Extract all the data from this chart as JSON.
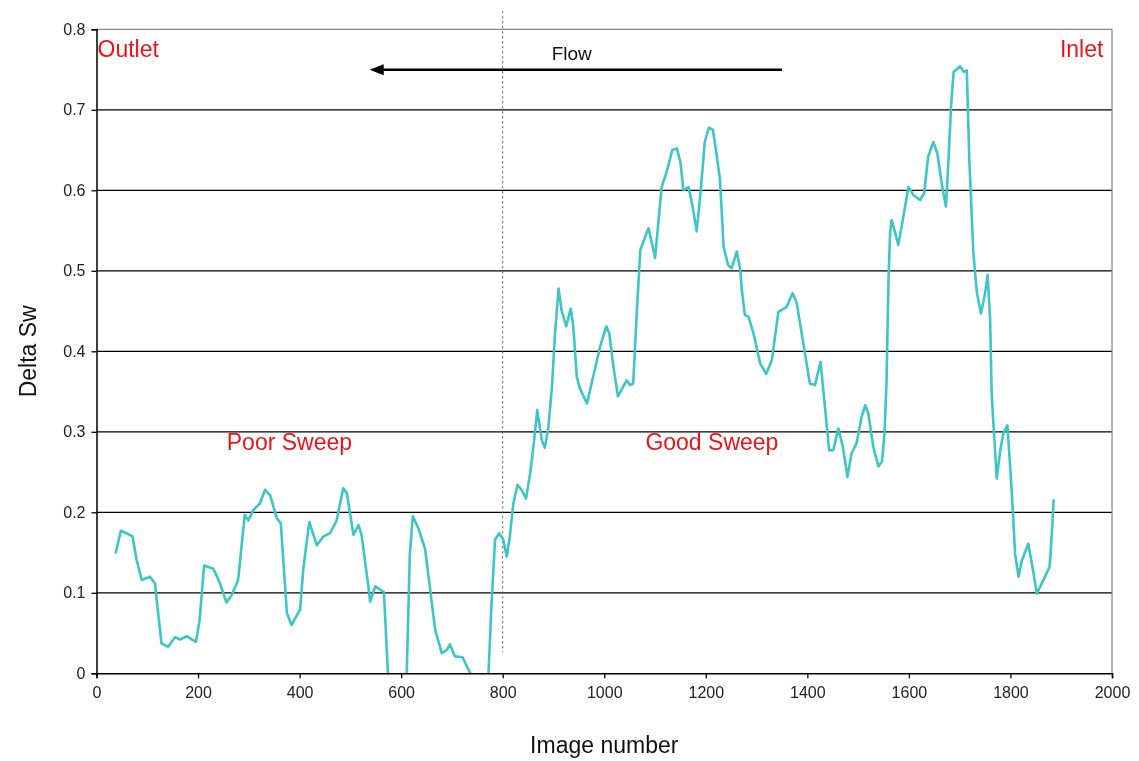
{
  "chart_data": {
    "type": "line",
    "xlabel": "Image number",
    "ylabel": "Delta Sw",
    "annotations": [
      "Outlet",
      "Flow",
      "Inlet",
      "Poor Sweep",
      "Good Sweep"
    ],
    "xlim": [
      0,
      2000
    ],
    "xticks": [
      0,
      200,
      400,
      600,
      800,
      1000,
      1200,
      1400,
      1600,
      1800,
      2000
    ],
    "ylim": [
      0,
      0.8
    ],
    "yticks": [
      0,
      0.1,
      0.2,
      0.3,
      0.4,
      0.5,
      0.6,
      0.7,
      0.8
    ],
    "grid": "y",
    "line_style": "solid",
    "color": "#3ec6c6",
    "ref_lines": [
      {
        "axis": "x",
        "value": 800,
        "line_style": "dotted",
        "color": "#555555"
      }
    ],
    "x": [
      38,
      48,
      59,
      71,
      79,
      89,
      105,
      115,
      128,
      141,
      155,
      164,
      178,
      196,
      203,
      212,
      230,
      243,
      256,
      266,
      279,
      292,
      299,
      309,
      322,
      332,
      342,
      355,
      363,
      375,
      384,
      401,
      407,
      419,
      434,
      447,
      460,
      473,
      486,
      493,
      506,
      516,
      522,
      535,
      539,
      549,
      566,
      574,
      592,
      611,
      617,
      623,
      634,
      647,
      667,
      680,
      690,
      696,
      706,
      721,
      736,
      754,
      772,
      778,
      785,
      793,
      801,
      808,
      814,
      821,
      829,
      837,
      846,
      854,
      862,
      868,
      877,
      883,
      890,
      897,
      903,
      910,
      916,
      925,
      934,
      939,
      946,
      952,
      966,
      978,
      992,
      1004,
      1010,
      1018,
      1027,
      1034,
      1044,
      1051,
      1057,
      1064,
      1071,
      1077,
      1087,
      1094,
      1100,
      1107,
      1113,
      1124,
      1134,
      1143,
      1150,
      1156,
      1166,
      1174,
      1182,
      1190,
      1198,
      1206,
      1214,
      1220,
      1228,
      1235,
      1244,
      1251,
      1261,
      1268,
      1271,
      1277,
      1284,
      1294,
      1307,
      1319,
      1330,
      1343,
      1359,
      1371,
      1379,
      1392,
      1405,
      1415,
      1426,
      1432,
      1443,
      1451,
      1461,
      1470,
      1479,
      1487,
      1497,
      1507,
      1514,
      1520,
      1530,
      1540,
      1547,
      1552,
      1556,
      1558,
      1560,
      1563,
      1566,
      1573,
      1579,
      1588,
      1599,
      1609,
      1622,
      1630,
      1638,
      1648,
      1656,
      1665,
      1673,
      1678,
      1683,
      1688,
      1701,
      1708,
      1714,
      1719,
      1727,
      1734,
      1742,
      1750,
      1755,
      1760,
      1763,
      1766,
      1773,
      1780,
      1786,
      1794,
      1799,
      1805,
      1809,
      1816,
      1822,
      1835,
      1842,
      1852,
      1862,
      1877,
      1879,
      1883,
      1885
    ],
    "values": [
      0.15,
      0.177,
      0.174,
      0.17,
      0.141,
      0.116,
      0.12,
      0.112,
      0.037,
      0.033,
      0.045,
      0.042,
      0.046,
      0.039,
      0.066,
      0.134,
      0.13,
      0.112,
      0.088,
      0.097,
      0.116,
      0.197,
      0.19,
      0.203,
      0.211,
      0.228,
      0.221,
      0.193,
      0.186,
      0.075,
      0.06,
      0.079,
      0.128,
      0.188,
      0.159,
      0.17,
      0.174,
      0.19,
      0.23,
      0.224,
      0.172,
      0.184,
      0.172,
      0.11,
      0.089,
      0.108,
      0.101,
      0,
      null,
      0,
      0.147,
      0.195,
      0.18,
      0.155,
      0.054,
      0.025,
      0.029,
      0.036,
      0.021,
      0.02,
      0,
      null,
      0,
      0.087,
      0.166,
      0.174,
      0.166,
      0.145,
      0.17,
      0.211,
      0.234,
      0.228,
      0.217,
      0.248,
      0.29,
      0.327,
      0.29,
      0.28,
      0.306,
      0.356,
      0.422,
      0.478,
      0.451,
      0.431,
      0.453,
      0.431,
      0.368,
      0.354,
      0.335,
      0.368,
      0.406,
      0.431,
      0.422,
      0.381,
      0.344,
      0.352,
      0.364,
      0.358,
      0.36,
      0.447,
      0.526,
      0.536,
      0.553,
      0.534,
      0.516,
      0.563,
      0.604,
      0.625,
      0.65,
      0.652,
      0.635,
      0.6,
      0.604,
      0.58,
      0.549,
      0.6,
      0.66,
      0.678,
      0.675,
      0.65,
      0.613,
      0.53,
      0.507,
      0.503,
      0.524,
      0.501,
      0.476,
      0.445,
      0.443,
      0.422,
      0.385,
      0.372,
      0.389,
      0.449,
      0.455,
      0.472,
      0.46,
      0.41,
      0.36,
      0.358,
      0.387,
      0.348,
      0.277,
      0.277,
      0.304,
      0.281,
      0.244,
      0.273,
      0.286,
      0.319,
      0.333,
      0.323,
      0.281,
      0.257,
      0.263,
      0.298,
      0.364,
      0.431,
      0.493,
      0.547,
      0.563,
      0.547,
      0.532,
      0.563,
      0.604,
      0.594,
      0.588,
      0.596,
      0.642,
      0.66,
      0.646,
      0.607,
      0.58,
      0.638,
      0.704,
      0.747,
      0.754,
      0.747,
      0.749,
      0.638,
      0.522,
      0.472,
      0.447,
      0.472,
      0.495,
      0.439,
      0.348,
      0.315,
      0.242,
      0.277,
      0.298,
      0.308,
      0.261,
      0.199,
      0.149,
      0.12,
      0.139,
      0.161,
      0.137,
      0.099,
      0.112,
      0.132,
      0.149,
      0.19,
      0.215
    ]
  }
}
